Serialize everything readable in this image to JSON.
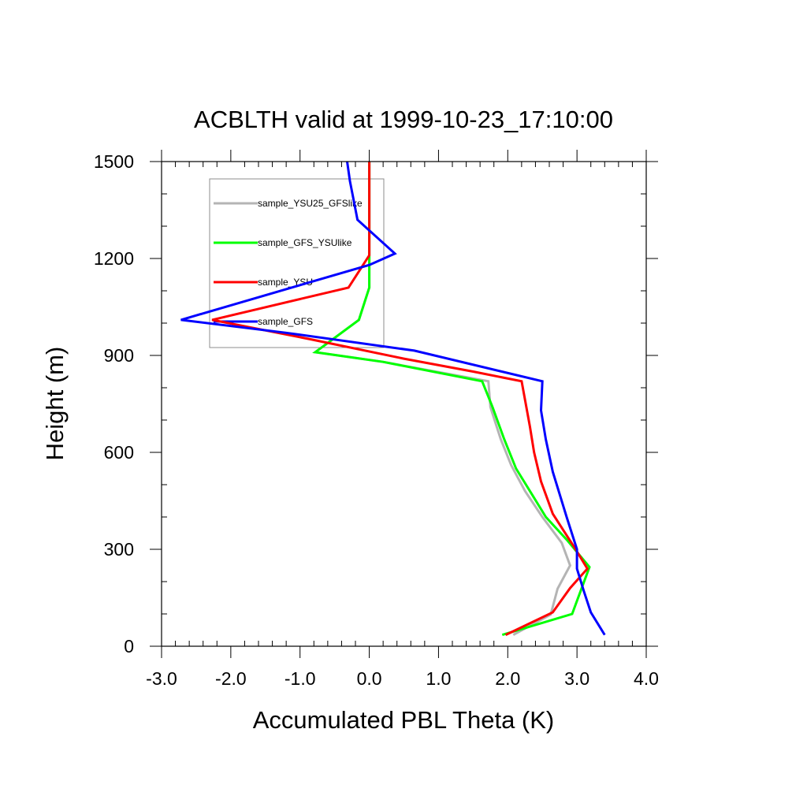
{
  "chart_data": {
    "type": "line",
    "title": "ACBLTH valid at 1999-10-23_17:10:00",
    "xlabel": "Accumulated PBL Theta (K)",
    "ylabel": "Height (m)",
    "xlim": [
      -3.0,
      4.0
    ],
    "ylim": [
      0,
      1500
    ],
    "xticks": [
      "-3.0",
      "-2.0",
      "-1.0",
      "0.0",
      "1.0",
      "2.0",
      "3.0",
      "4.0"
    ],
    "yticks": [
      "0",
      "300",
      "600",
      "900",
      "1200",
      "1500"
    ],
    "grid": false,
    "legend_position": "top-left",
    "series": [
      {
        "name": "sample_YSU25_GFSlike",
        "color": "#b4b4b4",
        "points": [
          [
            2.08,
            35
          ],
          [
            2.62,
            98
          ],
          [
            2.72,
            178
          ],
          [
            2.9,
            250
          ],
          [
            2.78,
            320
          ],
          [
            2.5,
            400
          ],
          [
            2.25,
            480
          ],
          [
            2.05,
            560
          ],
          [
            1.9,
            640
          ],
          [
            1.75,
            740
          ],
          [
            1.72,
            820
          ],
          [
            0.2,
            880
          ],
          [
            -0.78,
            910
          ],
          [
            -0.15,
            1010
          ],
          [
            0.0,
            1110
          ],
          [
            0.0,
            1500
          ]
        ]
      },
      {
        "name": "sample_GFS_YSUlike",
        "color": "#00ff00",
        "points": [
          [
            1.92,
            35
          ],
          [
            2.93,
            100
          ],
          [
            3.18,
            245
          ],
          [
            2.85,
            330
          ],
          [
            2.55,
            400
          ],
          [
            2.35,
            470
          ],
          [
            2.12,
            550
          ],
          [
            1.95,
            640
          ],
          [
            1.78,
            740
          ],
          [
            1.63,
            820
          ],
          [
            0.2,
            880
          ],
          [
            -0.78,
            910
          ],
          [
            -0.15,
            1010
          ],
          [
            0.0,
            1110
          ],
          [
            0.0,
            1500
          ]
        ]
      },
      {
        "name": "sample_YSU",
        "color": "#ff0000",
        "points": [
          [
            1.97,
            35
          ],
          [
            2.65,
            105
          ],
          [
            2.9,
            180
          ],
          [
            3.15,
            240
          ],
          [
            2.95,
            310
          ],
          [
            2.65,
            410
          ],
          [
            2.48,
            510
          ],
          [
            2.38,
            600
          ],
          [
            2.32,
            680
          ],
          [
            2.2,
            820
          ],
          [
            1.5,
            850
          ],
          [
            0.5,
            890
          ],
          [
            -0.85,
            950
          ],
          [
            -2.27,
            1010
          ],
          [
            -0.3,
            1110
          ],
          [
            0.0,
            1210
          ],
          [
            0.0,
            1500
          ]
        ]
      },
      {
        "name": "sample_GFS",
        "color": "#0000ff",
        "points": [
          [
            3.4,
            35
          ],
          [
            3.2,
            105
          ],
          [
            3.1,
            170
          ],
          [
            3.0,
            240
          ],
          [
            3.0,
            300
          ],
          [
            2.85,
            400
          ],
          [
            2.65,
            540
          ],
          [
            2.55,
            640
          ],
          [
            2.48,
            730
          ],
          [
            2.5,
            820
          ],
          [
            0.65,
            915
          ],
          [
            -1.2,
            970
          ],
          [
            -2.72,
            1010
          ],
          [
            0.0,
            1180
          ],
          [
            0.37,
            1215
          ],
          [
            -0.17,
            1320
          ],
          [
            -0.28,
            1440
          ],
          [
            -0.32,
            1500
          ]
        ]
      }
    ]
  }
}
